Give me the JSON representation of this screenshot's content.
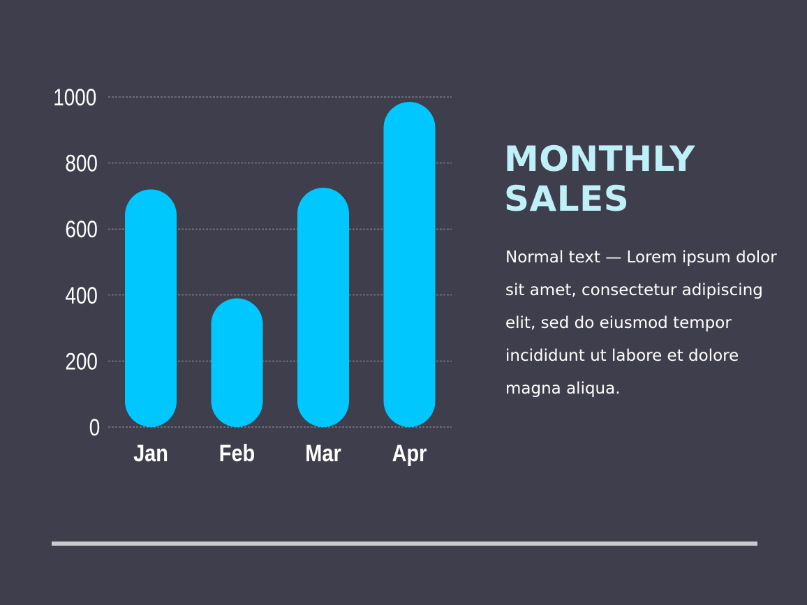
{
  "colors": {
    "background": "#3e3e4c",
    "bar": "#00c8ff",
    "title": "#bff0f7",
    "text": "#ffffff",
    "grid": "#9a9aa6",
    "divider": "#c9c9d0"
  },
  "heading": {
    "line1": "MONTHLY",
    "line2": "SALES"
  },
  "body_text": "Normal text — Lorem ipsum dolor sit amet, consectetur adipiscing elit, sed do eiusmod tempor incididunt ut labore et dolore magna aliqua.",
  "chart_data": {
    "type": "bar",
    "categories": [
      "Jan",
      "Feb",
      "Mar",
      "Apr"
    ],
    "values": [
      720,
      390,
      725,
      985
    ],
    "ylim": [
      0,
      1000
    ],
    "yticks": [
      0,
      200,
      400,
      600,
      800,
      1000
    ],
    "grid": true,
    "grid_style": "dashed",
    "bar_style": "rounded",
    "legend": "none"
  }
}
